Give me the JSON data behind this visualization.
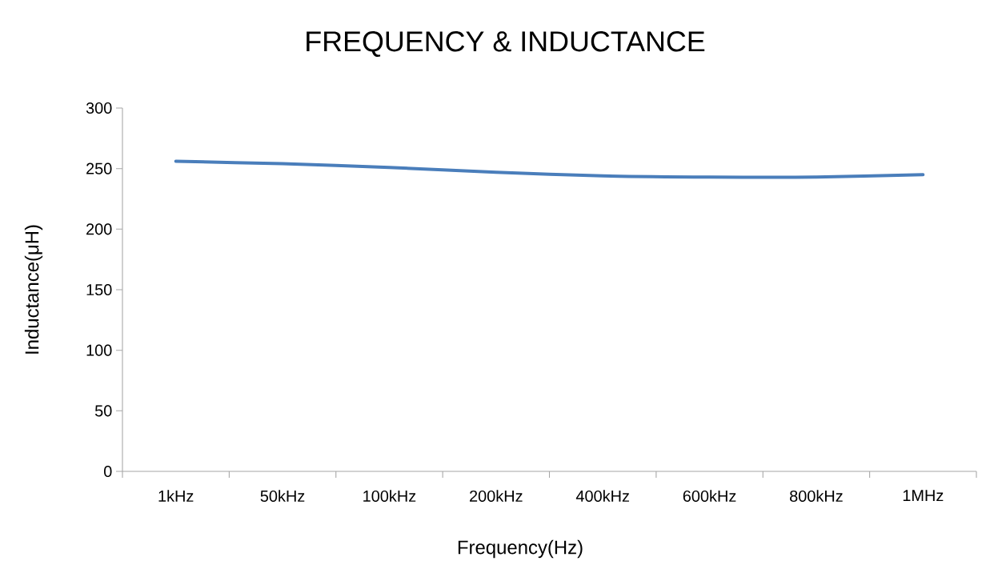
{
  "chart_data": {
    "type": "line",
    "title": "FREQUENCY & INDUCTANCE",
    "xlabel": "Frequency(Hz)",
    "ylabel": "Inductance(μH)",
    "categories": [
      "1kHz",
      "50kHz",
      "100kHz",
      "200kHz",
      "400kHz",
      "600kHz",
      "800kHz",
      "1MHz"
    ],
    "series": [
      {
        "color": "#4a7ebb",
        "values": [
          256,
          254,
          251,
          247,
          244,
          243,
          243,
          245
        ]
      }
    ],
    "ylim": [
      0,
      300
    ],
    "yticks": [
      0,
      50,
      100,
      150,
      200,
      250,
      300
    ],
    "grid": false,
    "marker": "none",
    "line_style": "solid"
  }
}
